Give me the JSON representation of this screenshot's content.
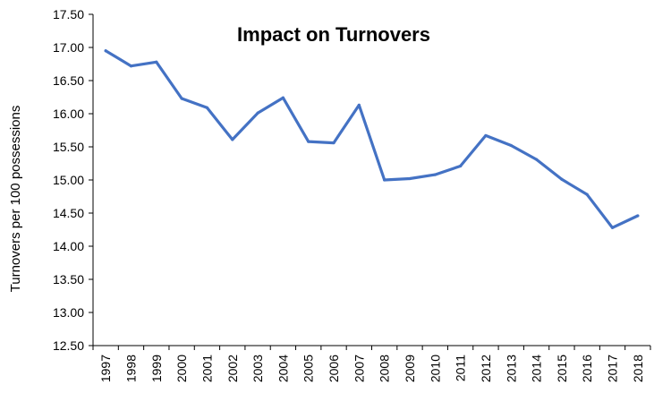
{
  "chart_data": {
    "type": "line",
    "title": "Impact on Turnovers",
    "xlabel": "",
    "ylabel": "Turnovers per 100 possessions",
    "ylim": [
      12.5,
      17.5
    ],
    "yticks": [
      "12.50",
      "13.00",
      "13.50",
      "14.00",
      "14.50",
      "15.00",
      "15.50",
      "16.00",
      "16.50",
      "17.00",
      "17.50"
    ],
    "categories": [
      "1997",
      "1998",
      "1999",
      "2000",
      "2001",
      "2002",
      "2003",
      "2004",
      "2005",
      "2006",
      "2007",
      "2008",
      "2009",
      "2010",
      "2011",
      "2012",
      "2013",
      "2014",
      "2015",
      "2016",
      "2017",
      "2018"
    ],
    "values": [
      16.95,
      16.72,
      16.78,
      16.23,
      16.09,
      15.61,
      16.01,
      16.24,
      15.58,
      15.56,
      16.13,
      15.0,
      15.02,
      15.08,
      15.21,
      15.67,
      15.52,
      15.31,
      15.01,
      14.78,
      14.28,
      14.46
    ],
    "grid": false,
    "legend": "none",
    "line_color": "#4472C4"
  }
}
